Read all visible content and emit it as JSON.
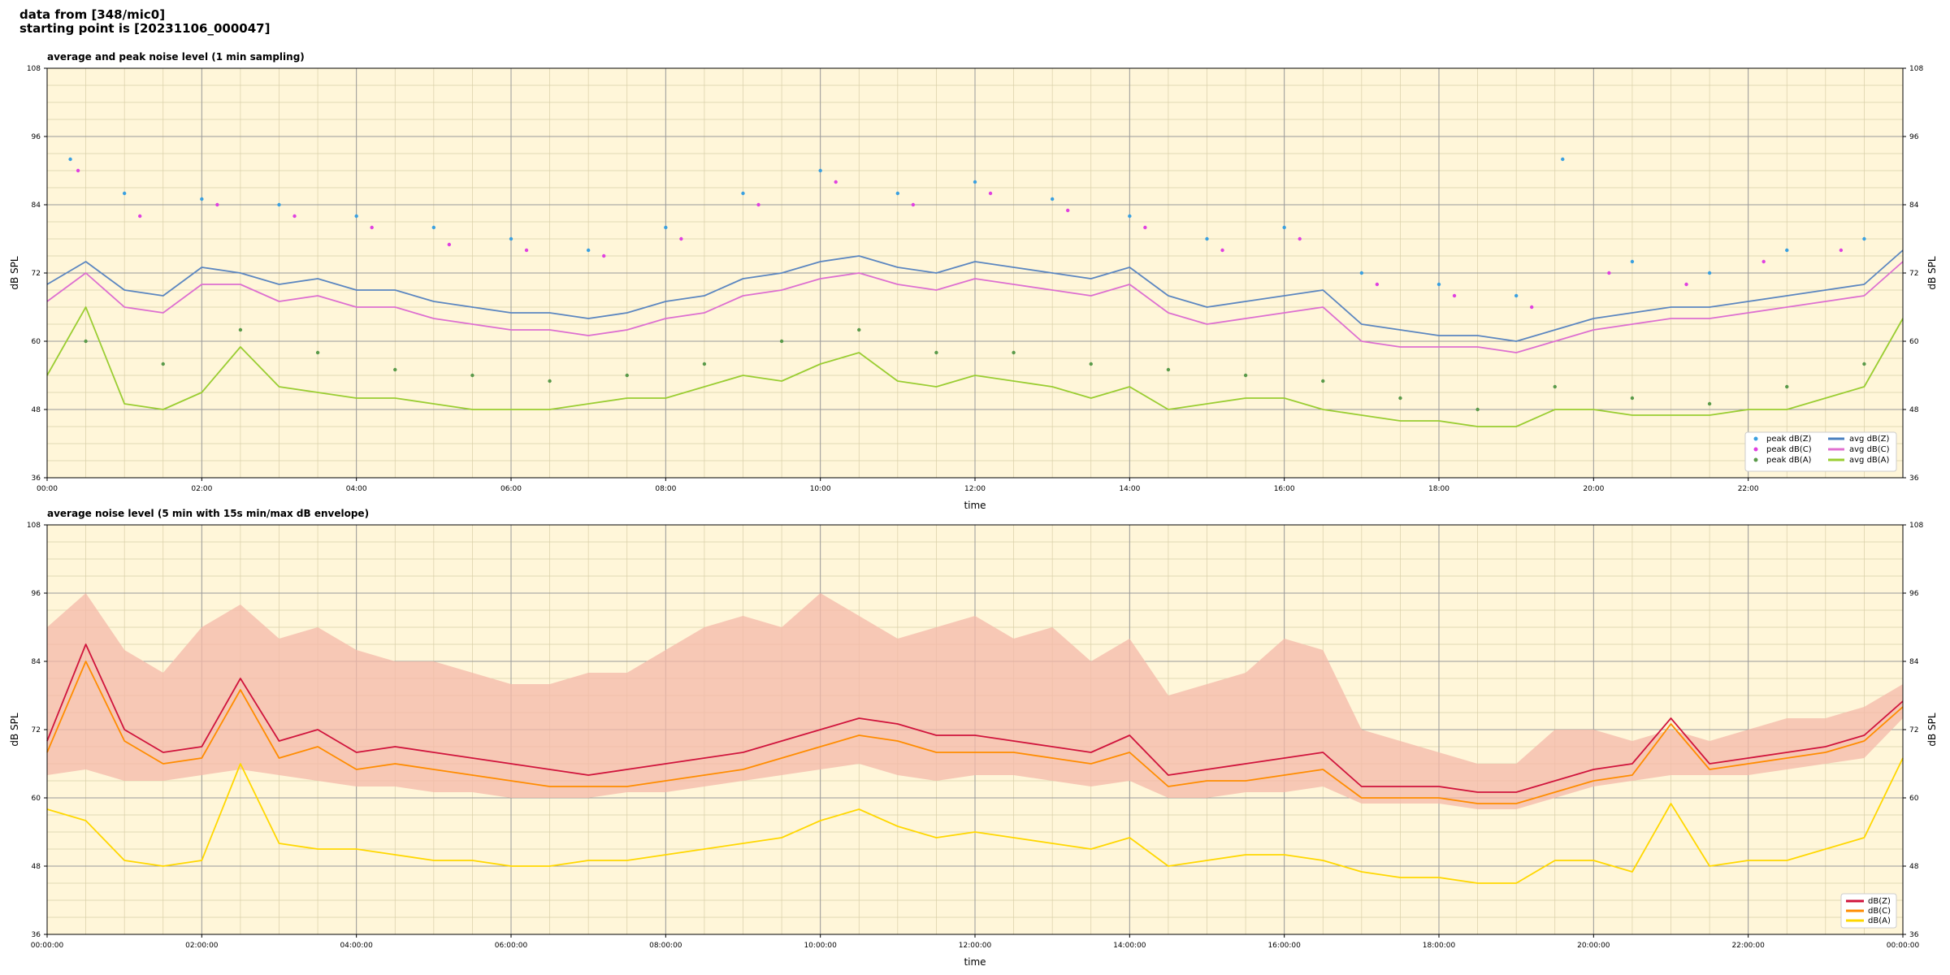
{
  "header": {
    "line1": "data from [348/mic0]",
    "line2": "starting point is [20231106_000047]"
  },
  "style": {
    "plot_bg": "#fff6d9",
    "grid_major": "#9a9a9a",
    "grid_minor": "#d9cfa8"
  },
  "chart_data": [
    {
      "type": "line",
      "title": "average and peak noise level (1 min sampling)",
      "xlabel": "time",
      "ylabel": "dB SPL",
      "ylabel_right": "dB SPL",
      "xlim_hours": [
        0,
        24
      ],
      "ylim": [
        36,
        108
      ],
      "yticks": [
        36,
        48,
        60,
        72,
        84,
        96,
        108
      ],
      "xticks": [
        "00:00",
        "02:00",
        "04:00",
        "06:00",
        "08:00",
        "10:00",
        "12:00",
        "14:00",
        "16:00",
        "18:00",
        "20:00",
        "22:00"
      ],
      "grid": true,
      "legend_position": "bottom-right",
      "legend": [
        {
          "label": "peak dB(Z)",
          "kind": "marker",
          "color": "#3aa0e0"
        },
        {
          "label": "peak dB(C)",
          "kind": "marker",
          "color": "#e040e0"
        },
        {
          "label": "peak dB(A)",
          "kind": "marker",
          "color": "#5a9a4a"
        },
        {
          "label": "avg dB(Z)",
          "kind": "line",
          "color": "#4a7fbf"
        },
        {
          "label": "avg dB(C)",
          "kind": "line",
          "color": "#e070d0"
        },
        {
          "label": "avg dB(A)",
          "kind": "line",
          "color": "#9acd32"
        }
      ],
      "series": [
        {
          "name": "avg dB(Z)",
          "color": "#5b86c0",
          "style": "line",
          "x": [
            0,
            0.5,
            1,
            1.5,
            2,
            2.5,
            3,
            3.5,
            4,
            4.5,
            5,
            5.5,
            6,
            6.5,
            7,
            7.5,
            8,
            8.5,
            9,
            9.5,
            10,
            10.5,
            11,
            11.5,
            12,
            12.5,
            13,
            13.5,
            14,
            14.5,
            15,
            15.5,
            16,
            16.5,
            17,
            17.5,
            18,
            18.5,
            19,
            19.5,
            20,
            20.5,
            21,
            21.5,
            22,
            22.5,
            23,
            23.5,
            24
          ],
          "y": [
            70,
            74,
            69,
            68,
            73,
            72,
            70,
            71,
            69,
            69,
            67,
            66,
            65,
            65,
            64,
            65,
            67,
            68,
            71,
            72,
            74,
            75,
            73,
            72,
            74,
            73,
            72,
            71,
            73,
            68,
            66,
            67,
            68,
            69,
            63,
            62,
            61,
            61,
            60,
            62,
            64,
            65,
            66,
            66,
            67,
            68,
            69,
            70,
            76
          ]
        },
        {
          "name": "avg dB(C)",
          "color": "#dd6fd0",
          "style": "line",
          "x": [
            0,
            0.5,
            1,
            1.5,
            2,
            2.5,
            3,
            3.5,
            4,
            4.5,
            5,
            5.5,
            6,
            6.5,
            7,
            7.5,
            8,
            8.5,
            9,
            9.5,
            10,
            10.5,
            11,
            11.5,
            12,
            12.5,
            13,
            13.5,
            14,
            14.5,
            15,
            15.5,
            16,
            16.5,
            17,
            17.5,
            18,
            18.5,
            19,
            19.5,
            20,
            20.5,
            21,
            21.5,
            22,
            22.5,
            23,
            23.5,
            24
          ],
          "y": [
            67,
            72,
            66,
            65,
            70,
            70,
            67,
            68,
            66,
            66,
            64,
            63,
            62,
            62,
            61,
            62,
            64,
            65,
            68,
            69,
            71,
            72,
            70,
            69,
            71,
            70,
            69,
            68,
            70,
            65,
            63,
            64,
            65,
            66,
            60,
            59,
            59,
            59,
            58,
            60,
            62,
            63,
            64,
            64,
            65,
            66,
            67,
            68,
            74
          ]
        },
        {
          "name": "avg dB(A)",
          "color": "#9acd32",
          "style": "line",
          "x": [
            0,
            0.5,
            1,
            1.5,
            2,
            2.5,
            3,
            3.5,
            4,
            4.5,
            5,
            5.5,
            6,
            6.5,
            7,
            7.5,
            8,
            8.5,
            9,
            9.5,
            10,
            10.5,
            11,
            11.5,
            12,
            12.5,
            13,
            13.5,
            14,
            14.5,
            15,
            15.5,
            16,
            16.5,
            17,
            17.5,
            18,
            18.5,
            19,
            19.5,
            20,
            20.5,
            21,
            21.5,
            22,
            22.5,
            23,
            23.5,
            24
          ],
          "y": [
            54,
            66,
            49,
            48,
            51,
            59,
            52,
            51,
            50,
            50,
            49,
            48,
            48,
            48,
            49,
            50,
            50,
            52,
            54,
            53,
            56,
            58,
            53,
            52,
            54,
            53,
            52,
            50,
            52,
            48,
            49,
            50,
            50,
            48,
            47,
            46,
            46,
            45,
            45,
            48,
            48,
            47,
            47,
            47,
            48,
            48,
            50,
            52,
            64
          ]
        },
        {
          "name": "peak dB(Z)",
          "color": "#3aa0e0",
          "style": "scatter",
          "x": [
            0.3,
            1,
            2,
            3,
            4,
            5,
            6,
            7,
            8,
            9,
            10,
            11,
            12,
            13,
            14,
            15,
            16,
            17,
            18,
            19,
            19.6,
            20.5,
            21.5,
            22.5,
            23.5
          ],
          "y": [
            92,
            86,
            85,
            84,
            82,
            80,
            78,
            76,
            80,
            86,
            90,
            86,
            88,
            85,
            82,
            78,
            80,
            72,
            70,
            68,
            92,
            74,
            72,
            76,
            78
          ]
        },
        {
          "name": "peak dB(C)",
          "color": "#e040e0",
          "style": "scatter",
          "x": [
            0.4,
            1.2,
            2.2,
            3.2,
            4.2,
            5.2,
            6.2,
            7.2,
            8.2,
            9.2,
            10.2,
            11.2,
            12.2,
            13.2,
            14.2,
            15.2,
            16.2,
            17.2,
            18.2,
            19.2,
            20.2,
            21.2,
            22.2,
            23.2
          ],
          "y": [
            90,
            82,
            84,
            82,
            80,
            77,
            76,
            75,
            78,
            84,
            88,
            84,
            86,
            83,
            80,
            76,
            78,
            70,
            68,
            66,
            72,
            70,
            74,
            76
          ]
        },
        {
          "name": "peak dB(A)",
          "color": "#5a9a4a",
          "style": "scatter",
          "x": [
            0.5,
            1.5,
            2.5,
            3.5,
            4.5,
            5.5,
            6.5,
            7.5,
            8.5,
            9.5,
            10.5,
            11.5,
            12.5,
            13.5,
            14.5,
            15.5,
            16.5,
            17.5,
            18.5,
            19.5,
            20.5,
            21.5,
            22.5,
            23.5
          ],
          "y": [
            60,
            56,
            62,
            58,
            55,
            54,
            53,
            54,
            56,
            60,
            62,
            58,
            58,
            56,
            55,
            54,
            53,
            50,
            48,
            52,
            50,
            49,
            52,
            56
          ]
        }
      ]
    },
    {
      "type": "line",
      "title": "average noise level (5 min with 15s min/max dB envelope)",
      "xlabel": "time",
      "ylabel": "dB SPL",
      "ylabel_right": "dB SPL",
      "xlim_hours": [
        0,
        24
      ],
      "ylim": [
        36,
        108
      ],
      "yticks": [
        36,
        48,
        60,
        72,
        84,
        96,
        108
      ],
      "xticks": [
        "00:00:00",
        "02:00:00",
        "04:00:00",
        "06:00:00",
        "08:00:00",
        "10:00:00",
        "12:00:00",
        "14:00:00",
        "16:00:00",
        "18:00:00",
        "20:00:00",
        "22:00:00",
        "00:00:00"
      ],
      "grid": true,
      "legend_position": "bottom-right",
      "legend": [
        {
          "label": "dB(Z)",
          "kind": "line",
          "color": "#d0143c"
        },
        {
          "label": "dB(C)",
          "kind": "line",
          "color": "#ff8c00"
        },
        {
          "label": "dB(A)",
          "kind": "line",
          "color": "#ffd700"
        }
      ],
      "envelope": {
        "color": "#f4b8a8",
        "x": [
          0,
          0.5,
          1,
          1.5,
          2,
          2.5,
          3,
          3.5,
          4,
          4.5,
          5,
          5.5,
          6,
          6.5,
          7,
          7.5,
          8,
          8.5,
          9,
          9.5,
          10,
          10.5,
          11,
          11.5,
          12,
          12.5,
          13,
          13.5,
          14,
          14.5,
          15,
          15.5,
          16,
          16.5,
          17,
          17.5,
          18,
          18.5,
          19,
          19.5,
          20,
          20.5,
          21,
          21.5,
          22,
          22.5,
          23,
          23.5,
          24
        ],
        "min": [
          64,
          65,
          63,
          63,
          64,
          65,
          64,
          63,
          62,
          62,
          61,
          61,
          60,
          60,
          60,
          61,
          61,
          62,
          63,
          64,
          65,
          66,
          64,
          63,
          64,
          64,
          63,
          62,
          63,
          60,
          60,
          61,
          61,
          62,
          59,
          59,
          59,
          58,
          58,
          60,
          62,
          63,
          64,
          64,
          64,
          65,
          66,
          67,
          74
        ],
        "max": [
          90,
          96,
          86,
          82,
          90,
          94,
          88,
          90,
          86,
          84,
          84,
          82,
          80,
          80,
          82,
          82,
          86,
          90,
          92,
          90,
          96,
          92,
          88,
          90,
          92,
          88,
          90,
          84,
          88,
          78,
          80,
          82,
          88,
          86,
          72,
          70,
          68,
          66,
          66,
          72,
          72,
          70,
          72,
          70,
          72,
          74,
          74,
          76,
          80
        ]
      },
      "series": [
        {
          "name": "dB(Z)",
          "color": "#d0143c",
          "x": [
            0,
            0.5,
            1,
            1.5,
            2,
            2.5,
            3,
            3.5,
            4,
            4.5,
            5,
            5.5,
            6,
            6.5,
            7,
            7.5,
            8,
            8.5,
            9,
            9.5,
            10,
            10.5,
            11,
            11.5,
            12,
            12.5,
            13,
            13.5,
            14,
            14.5,
            15,
            15.5,
            16,
            16.5,
            17,
            17.5,
            18,
            18.5,
            19,
            19.5,
            20,
            20.5,
            21,
            21.5,
            22,
            22.5,
            23,
            23.5,
            24
          ],
          "y": [
            70,
            87,
            72,
            68,
            69,
            81,
            70,
            72,
            68,
            69,
            68,
            67,
            66,
            65,
            64,
            65,
            66,
            67,
            68,
            70,
            72,
            74,
            73,
            71,
            71,
            70,
            69,
            68,
            71,
            64,
            65,
            66,
            67,
            68,
            62,
            62,
            62,
            61,
            61,
            63,
            65,
            66,
            74,
            66,
            67,
            68,
            69,
            71,
            77
          ]
        },
        {
          "name": "dB(C)",
          "color": "#ff8c00",
          "x": [
            0,
            0.5,
            1,
            1.5,
            2,
            2.5,
            3,
            3.5,
            4,
            4.5,
            5,
            5.5,
            6,
            6.5,
            7,
            7.5,
            8,
            8.5,
            9,
            9.5,
            10,
            10.5,
            11,
            11.5,
            12,
            12.5,
            13,
            13.5,
            14,
            14.5,
            15,
            15.5,
            16,
            16.5,
            17,
            17.5,
            18,
            18.5,
            19,
            19.5,
            20,
            20.5,
            21,
            21.5,
            22,
            22.5,
            23,
            23.5,
            24
          ],
          "y": [
            68,
            84,
            70,
            66,
            67,
            79,
            67,
            69,
            65,
            66,
            65,
            64,
            63,
            62,
            62,
            62,
            63,
            64,
            65,
            67,
            69,
            71,
            70,
            68,
            68,
            68,
            67,
            66,
            68,
            62,
            63,
            63,
            64,
            65,
            60,
            60,
            60,
            59,
            59,
            61,
            63,
            64,
            73,
            65,
            66,
            67,
            68,
            70,
            76
          ]
        },
        {
          "name": "dB(A)",
          "color": "#ffd700",
          "x": [
            0,
            0.5,
            1,
            1.5,
            2,
            2.5,
            3,
            3.5,
            4,
            4.5,
            5,
            5.5,
            6,
            6.5,
            7,
            7.5,
            8,
            8.5,
            9,
            9.5,
            10,
            10.5,
            11,
            11.5,
            12,
            12.5,
            13,
            13.5,
            14,
            14.5,
            15,
            15.5,
            16,
            16.5,
            17,
            17.5,
            18,
            18.5,
            19,
            19.5,
            20,
            20.5,
            21,
            21.5,
            22,
            22.5,
            23,
            23.5,
            24
          ],
          "y": [
            58,
            56,
            49,
            48,
            49,
            66,
            52,
            51,
            51,
            50,
            49,
            49,
            48,
            48,
            49,
            49,
            50,
            51,
            52,
            53,
            56,
            58,
            55,
            53,
            54,
            53,
            52,
            51,
            53,
            48,
            49,
            50,
            50,
            49,
            47,
            46,
            46,
            45,
            45,
            49,
            49,
            47,
            59,
            48,
            49,
            49,
            51,
            53,
            67
          ]
        }
      ]
    }
  ]
}
